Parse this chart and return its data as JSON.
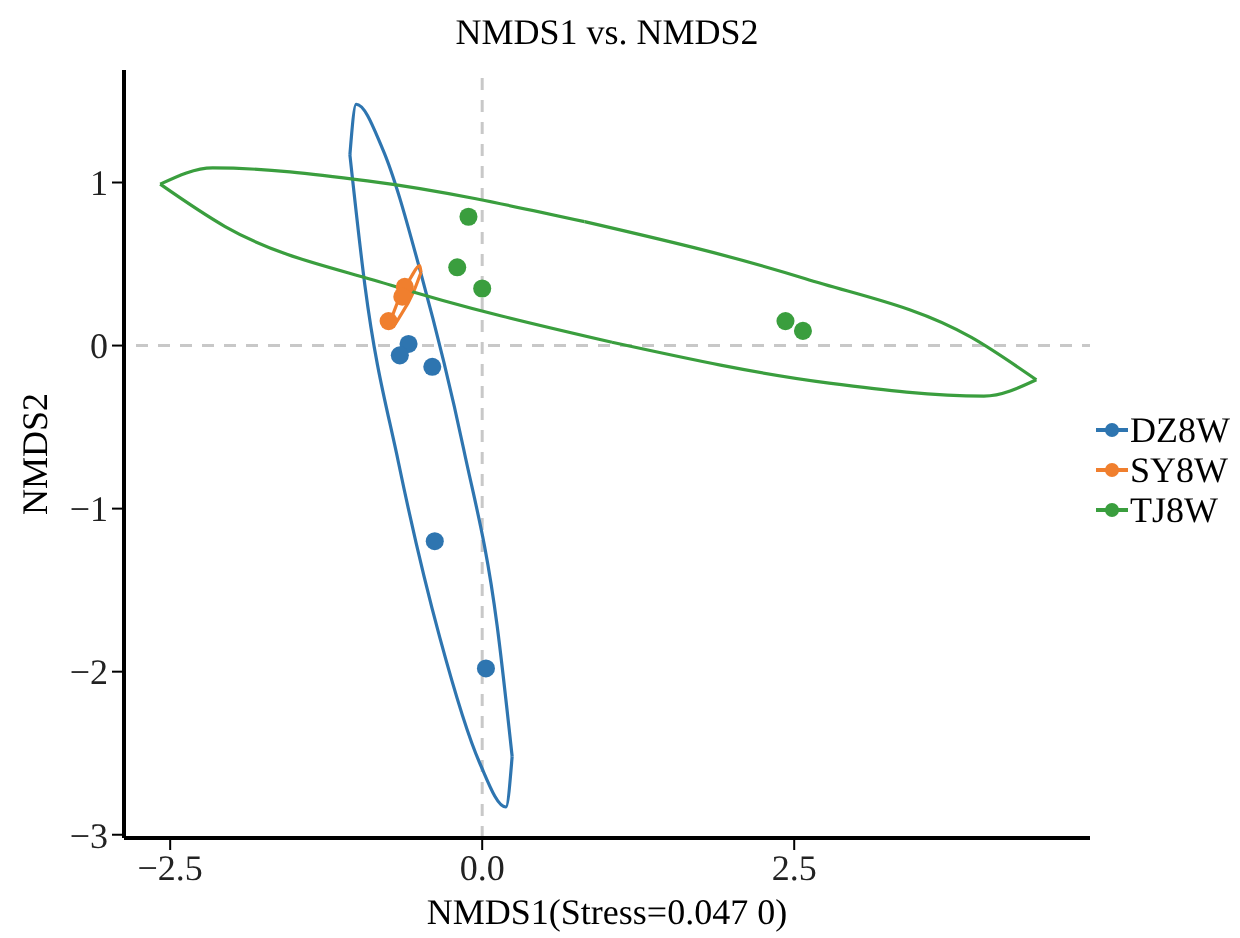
{
  "chart_data": {
    "type": "scatter",
    "title": "NMDS1 vs. NMDS2",
    "xlabel": "NMDS1(Stress=0.047 0)",
    "ylabel": "NMDS2",
    "xlim": [
      -2.87,
      4.87
    ],
    "ylim": [
      -3.02,
      1.69
    ],
    "xticks": [
      {
        "value": -2.5,
        "label": "−2.5"
      },
      {
        "value": 0,
        "label": "0.0"
      },
      {
        "value": 2.5,
        "label": "2.5"
      }
    ],
    "yticks": [
      {
        "value": -3,
        "label": "−3"
      },
      {
        "value": -2,
        "label": "−2"
      },
      {
        "value": -1,
        "label": "−1"
      },
      0,
      1
    ],
    "legend": "right",
    "marker": "circle",
    "ref_lines": [
      {
        "axis": "x",
        "value": 0,
        "color": "#c8c8c8",
        "line_style": "dashed"
      },
      {
        "axis": "y",
        "value": 0,
        "color": "#c8c8c8",
        "line_style": "dashed"
      }
    ],
    "series": [
      {
        "name": "DZ8W",
        "color": "#2e75b0",
        "x": [
          -0.59,
          -0.66,
          -0.4,
          -0.38,
          0.03
        ],
        "values": [
          0.01,
          -0.06,
          -0.13,
          -1.2,
          -1.98
        ]
      },
      {
        "name": "SY8W",
        "color": "#f07f2e",
        "x": [
          -0.62,
          -0.64,
          -0.75
        ],
        "values": [
          0.36,
          0.3,
          0.15
        ]
      },
      {
        "name": "TJ8W",
        "color": "#3a9e3e",
        "x": [
          -0.11,
          -0.2,
          0.0,
          2.43,
          2.57
        ],
        "values": [
          0.79,
          0.48,
          0.35,
          0.15,
          0.09
        ]
      },
      {
        "type": "line",
        "marker": "none",
        "color": "#2e75b0",
        "x": [
          -1.06,
          -1.01,
          -0.8,
          -0.49,
          -0.15,
          0.12,
          0.24
        ],
        "values": [
          1.17,
          1.48,
          1.21,
          0.44,
          -0.63,
          -1.72,
          -2.52
        ]
      },
      {
        "type": "line",
        "marker": "none",
        "color": "#2e75b0",
        "x": [
          -1.06,
          -0.94,
          -0.67,
          -0.34,
          -0.02,
          0.19,
          0.24
        ],
        "values": [
          1.17,
          0.37,
          -0.72,
          -1.79,
          -2.56,
          -2.83,
          -2.52
        ]
      },
      {
        "type": "line",
        "marker": "none",
        "color": "#f07f2e",
        "x": [
          -0.73,
          -0.72,
          -0.65,
          -0.55,
          -0.49
        ],
        "values": [
          0.16,
          0.12,
          0.19,
          0.33,
          0.45
        ]
      },
      {
        "type": "line",
        "marker": "none",
        "color": "#f07f2e",
        "x": [
          -0.73,
          -0.67,
          -0.57,
          -0.5,
          -0.49
        ],
        "values": [
          0.16,
          0.28,
          0.42,
          0.49,
          0.45
        ]
      },
      {
        "type": "line",
        "marker": "none",
        "color": "#3a9e3e",
        "x": [
          -2.58,
          -2.16,
          -0.92,
          0.82
        ],
        "values": [
          0.99,
          1.09,
          1.01,
          0.76
        ]
      },
      {
        "type": "line",
        "marker": "none",
        "color": "#3a9e3e",
        "x": [
          0.82,
          2.59,
          3.92,
          4.44
        ],
        "values": [
          0.76,
          0.41,
          0.05,
          -0.21
        ]
      },
      {
        "type": "line",
        "marker": "none",
        "color": "#3a9e3e",
        "x": [
          -2.58,
          -2.06,
          -0.73,
          1.04
        ],
        "values": [
          0.99,
          0.73,
          0.37,
          0.02
        ]
      },
      {
        "type": "line",
        "marker": "none",
        "color": "#3a9e3e",
        "x": [
          1.04,
          2.78,
          4.02,
          4.44
        ],
        "values": [
          0.02,
          -0.23,
          -0.31,
          -0.21
        ]
      }
    ]
  }
}
